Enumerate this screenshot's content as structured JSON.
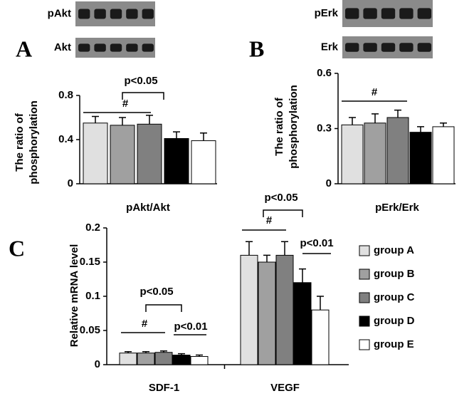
{
  "chart_data": [
    {
      "type": "bar",
      "panel": "A",
      "blots": [
        "pAkt",
        "Akt"
      ],
      "ylabel": [
        "The ratio of",
        "phosphorylation"
      ],
      "xlabel": "pAkt/Akt",
      "values": [
        0.55,
        0.53,
        0.54,
        0.41,
        0.39
      ],
      "errors": [
        0.06,
        0.07,
        0.08,
        0.06,
        0.07
      ],
      "colors": [
        "#e0e0e0",
        "#a0a0a0",
        "#808080",
        "#000000",
        "#ffffff"
      ],
      "ylim": [
        0,
        0.8
      ],
      "yticks": [
        0,
        0.4,
        0.8
      ],
      "annotations": [
        "p<0.05",
        "#"
      ]
    },
    {
      "type": "bar",
      "panel": "B",
      "blots": [
        "pErk",
        "Erk"
      ],
      "ylabel": [
        "The ratio of",
        "phosphorylation"
      ],
      "xlabel": "pErk/Erk",
      "values": [
        0.32,
        0.33,
        0.36,
        0.28,
        0.31
      ],
      "errors": [
        0.04,
        0.05,
        0.04,
        0.03,
        0.02
      ],
      "colors": [
        "#e0e0e0",
        "#a0a0a0",
        "#808080",
        "#000000",
        "#ffffff"
      ],
      "ylim": [
        0,
        0.6
      ],
      "yticks": [
        0,
        0.3,
        0.6
      ],
      "annotations": [
        "#"
      ]
    },
    {
      "type": "grouped-bar",
      "panel": "C",
      "ylabel": "Relative mRNA level",
      "categories": [
        "SDF-1",
        "VEGF"
      ],
      "series": [
        {
          "name": "group A",
          "color": "#e0e0e0",
          "values": [
            0.017,
            0.16
          ],
          "errors": [
            0.002,
            0.02
          ]
        },
        {
          "name": "group B",
          "color": "#a0a0a0",
          "values": [
            0.017,
            0.15
          ],
          "errors": [
            0.002,
            0.01
          ]
        },
        {
          "name": "group C",
          "color": "#808080",
          "values": [
            0.018,
            0.16
          ],
          "errors": [
            0.002,
            0.02
          ]
        },
        {
          "name": "group D",
          "color": "#000000",
          "values": [
            0.014,
            0.12
          ],
          "errors": [
            0.002,
            0.02
          ]
        },
        {
          "name": "group E",
          "color": "#ffffff",
          "values": [
            0.012,
            0.08
          ],
          "errors": [
            0.002,
            0.02
          ]
        }
      ],
      "ylim": [
        0,
        0.2
      ],
      "yticks": [
        0,
        0.05,
        0.1,
        0.15,
        0.2
      ],
      "annotations": [
        "p<0.05",
        "#",
        "p<0.01",
        "p<0.05",
        "#",
        "p<0.01"
      ]
    }
  ]
}
